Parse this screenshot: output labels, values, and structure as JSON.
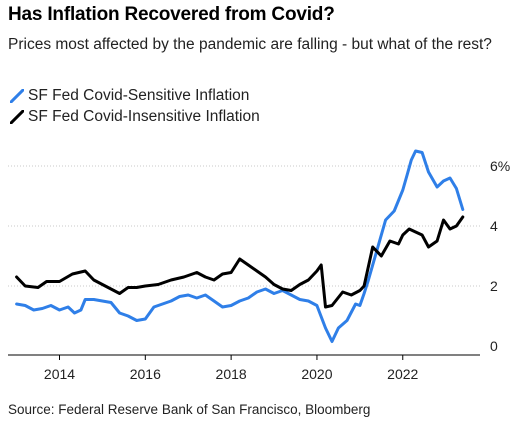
{
  "title": "Has Inflation Recovered from Covid?",
  "subtitle": "Prices most affected by the pandemic are falling - but what of the rest?",
  "source": "Source: Federal Reserve Bank of San Francisco, Bloomberg",
  "chart_data": {
    "type": "line",
    "title": "Has Inflation Recovered from Covid?",
    "subtitle": "Prices most affected by the pandemic are falling - but what of the rest?",
    "xlabel": "",
    "ylabel": "",
    "xlim": [
      2012.8,
      2023.8
    ],
    "ylim": [
      -0.3,
      6.7
    ],
    "x_ticks": [
      2014,
      2016,
      2018,
      2020,
      2022
    ],
    "x_tick_labels": [
      "2014",
      "2016",
      "2018",
      "2020",
      "2022"
    ],
    "y_ticks": [
      0,
      2,
      4,
      6
    ],
    "y_tick_labels": [
      "0",
      "2",
      "4",
      "6%"
    ],
    "grid": "horizontal dotted",
    "legend_position": "top-left",
    "series": [
      {
        "name": "SF Fed Covid-Sensitive Inflation",
        "color": "#2f7fe8",
        "points": [
          [
            2013.0,
            1.4
          ],
          [
            2013.2,
            1.35
          ],
          [
            2013.4,
            1.2
          ],
          [
            2013.6,
            1.25
          ],
          [
            2013.8,
            1.35
          ],
          [
            2014.0,
            1.2
          ],
          [
            2014.2,
            1.3
          ],
          [
            2014.35,
            1.1
          ],
          [
            2014.5,
            1.2
          ],
          [
            2014.6,
            1.55
          ],
          [
            2014.8,
            1.55
          ],
          [
            2015.0,
            1.5
          ],
          [
            2015.2,
            1.45
          ],
          [
            2015.4,
            1.1
          ],
          [
            2015.6,
            1.0
          ],
          [
            2015.8,
            0.85
          ],
          [
            2016.0,
            0.9
          ],
          [
            2016.2,
            1.3
          ],
          [
            2016.4,
            1.4
          ],
          [
            2016.6,
            1.5
          ],
          [
            2016.8,
            1.65
          ],
          [
            2017.0,
            1.7
          ],
          [
            2017.2,
            1.6
          ],
          [
            2017.4,
            1.7
          ],
          [
            2017.6,
            1.5
          ],
          [
            2017.8,
            1.3
          ],
          [
            2018.0,
            1.35
          ],
          [
            2018.2,
            1.5
          ],
          [
            2018.4,
            1.6
          ],
          [
            2018.6,
            1.8
          ],
          [
            2018.8,
            1.9
          ],
          [
            2019.0,
            1.75
          ],
          [
            2019.2,
            1.85
          ],
          [
            2019.4,
            1.7
          ],
          [
            2019.6,
            1.55
          ],
          [
            2019.8,
            1.5
          ],
          [
            2020.0,
            1.35
          ],
          [
            2020.2,
            0.6
          ],
          [
            2020.35,
            0.15
          ],
          [
            2020.5,
            0.6
          ],
          [
            2020.7,
            0.85
          ],
          [
            2020.9,
            1.4
          ],
          [
            2021.0,
            1.35
          ],
          [
            2021.1,
            1.75
          ],
          [
            2021.2,
            2.2
          ],
          [
            2021.4,
            3.2
          ],
          [
            2021.6,
            4.2
          ],
          [
            2021.8,
            4.5
          ],
          [
            2022.0,
            5.2
          ],
          [
            2022.1,
            5.7
          ],
          [
            2022.2,
            6.2
          ],
          [
            2022.3,
            6.5
          ],
          [
            2022.45,
            6.45
          ],
          [
            2022.6,
            5.8
          ],
          [
            2022.8,
            5.3
          ],
          [
            2022.95,
            5.5
          ],
          [
            2023.1,
            5.6
          ],
          [
            2023.25,
            5.25
          ],
          [
            2023.4,
            4.55
          ]
        ]
      },
      {
        "name": "SF Fed Covid-Insensitive Inflation",
        "color": "#000000",
        "points": [
          [
            2013.0,
            2.3
          ],
          [
            2013.2,
            2.0
          ],
          [
            2013.5,
            1.95
          ],
          [
            2013.7,
            2.15
          ],
          [
            2014.0,
            2.15
          ],
          [
            2014.3,
            2.4
          ],
          [
            2014.6,
            2.5
          ],
          [
            2014.8,
            2.2
          ],
          [
            2015.0,
            2.05
          ],
          [
            2015.2,
            1.9
          ],
          [
            2015.4,
            1.75
          ],
          [
            2015.6,
            1.95
          ],
          [
            2015.8,
            1.95
          ],
          [
            2016.0,
            2.0
          ],
          [
            2016.3,
            2.05
          ],
          [
            2016.6,
            2.2
          ],
          [
            2016.9,
            2.3
          ],
          [
            2017.2,
            2.45
          ],
          [
            2017.4,
            2.3
          ],
          [
            2017.6,
            2.2
          ],
          [
            2017.8,
            2.4
          ],
          [
            2018.0,
            2.45
          ],
          [
            2018.2,
            2.9
          ],
          [
            2018.4,
            2.7
          ],
          [
            2018.6,
            2.5
          ],
          [
            2018.8,
            2.3
          ],
          [
            2019.0,
            2.05
          ],
          [
            2019.2,
            1.9
          ],
          [
            2019.4,
            1.85
          ],
          [
            2019.6,
            2.05
          ],
          [
            2019.8,
            2.2
          ],
          [
            2020.0,
            2.5
          ],
          [
            2020.1,
            2.7
          ],
          [
            2020.2,
            1.3
          ],
          [
            2020.35,
            1.35
          ],
          [
            2020.6,
            1.8
          ],
          [
            2020.8,
            1.7
          ],
          [
            2021.0,
            1.85
          ],
          [
            2021.1,
            2.0
          ],
          [
            2021.3,
            3.3
          ],
          [
            2021.5,
            3.0
          ],
          [
            2021.7,
            3.5
          ],
          [
            2021.9,
            3.4
          ],
          [
            2022.0,
            3.7
          ],
          [
            2022.15,
            3.9
          ],
          [
            2022.3,
            3.8
          ],
          [
            2022.45,
            3.7
          ],
          [
            2022.6,
            3.3
          ],
          [
            2022.8,
            3.5
          ],
          [
            2022.95,
            4.2
          ],
          [
            2023.1,
            3.9
          ],
          [
            2023.25,
            4.0
          ],
          [
            2023.4,
            4.3
          ]
        ]
      }
    ]
  }
}
